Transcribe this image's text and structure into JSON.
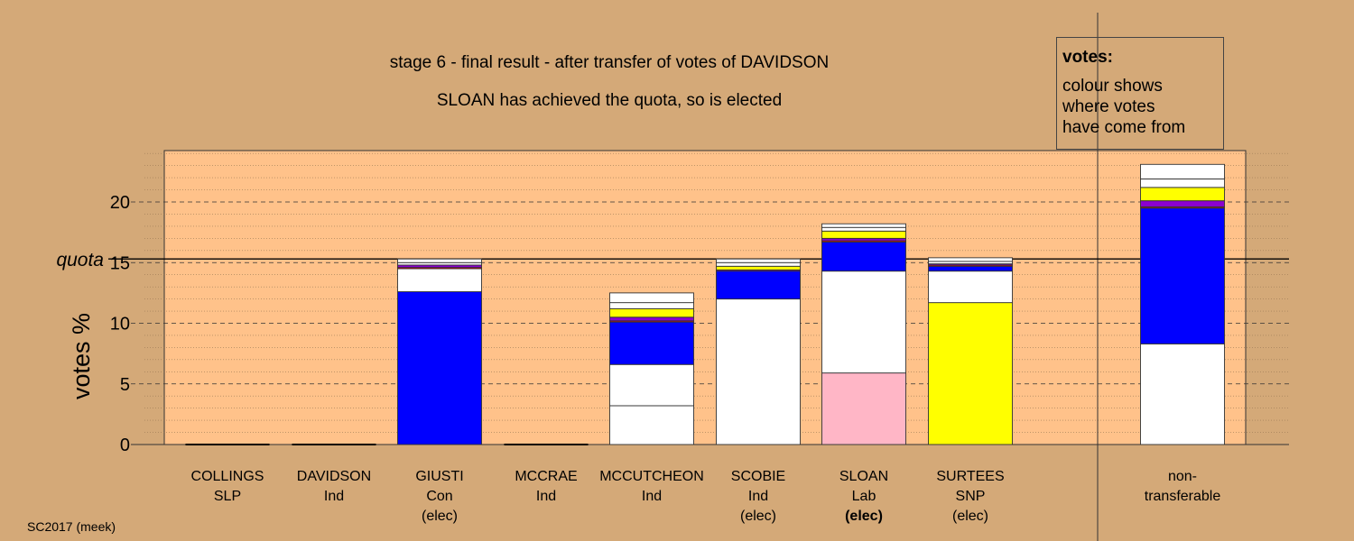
{
  "chart_data": {
    "type": "bar",
    "stacked": true,
    "title": "stage 6 - final result - after transfer of votes of DAVIDSON",
    "subtitle": "SLOAN has achieved the quota, so is elected",
    "ylabel": "votes %",
    "ylim": [
      0,
      24.5
    ],
    "yticks": [
      0,
      5,
      10,
      15,
      20
    ],
    "quota": 15.3,
    "quota_label": "quota",
    "footer": "SC2017 (meek)",
    "legend": {
      "title": "votes:",
      "lines": [
        "colour shows",
        "where votes",
        "have come from"
      ]
    },
    "colors": {
      "white": "#ffffff",
      "blue": "#0000ff",
      "yellow": "#ffff00",
      "purple": "#8b00d0",
      "red": "#ff0000",
      "pink": "#ffb6c6",
      "plot_bg": "#ffc28a",
      "page_bg": "#d4a978"
    },
    "bars": [
      {
        "name": "COLLINGS",
        "party": "SLP",
        "status": "",
        "segments": []
      },
      {
        "name": "DAVIDSON",
        "party": "Ind",
        "status": "",
        "segments": []
      },
      {
        "name": "GIUSTI",
        "party": "Con",
        "status": "(elec)",
        "segments": [
          {
            "color": "blue",
            "value": 12.6
          },
          {
            "color": "white",
            "value": 1.9
          },
          {
            "color": "red",
            "value": 0.1
          },
          {
            "color": "purple",
            "value": 0.2
          },
          {
            "color": "white",
            "value": 0.2
          },
          {
            "color": "white",
            "value": 0.3
          }
        ]
      },
      {
        "name": "MCCRAE",
        "party": "Ind",
        "status": "",
        "segments": []
      },
      {
        "name": "MCCUTCHEON",
        "party": "Ind",
        "status": "",
        "segments": [
          {
            "color": "white",
            "value": 3.2
          },
          {
            "color": "white",
            "value": 3.4
          },
          {
            "color": "blue",
            "value": 3.5
          },
          {
            "color": "red",
            "value": 0.1
          },
          {
            "color": "purple",
            "value": 0.3
          },
          {
            "color": "yellow",
            "value": 0.7
          },
          {
            "color": "white",
            "value": 0.5
          },
          {
            "color": "white",
            "value": 0.8
          }
        ]
      },
      {
        "name": "SCOBIE",
        "party": "Ind",
        "status": "(elec)",
        "segments": [
          {
            "color": "white",
            "value": 12.0
          },
          {
            "color": "blue",
            "value": 2.3
          },
          {
            "color": "purple",
            "value": 0.1
          },
          {
            "color": "yellow",
            "value": 0.3
          },
          {
            "color": "white",
            "value": 0.3
          },
          {
            "color": "white",
            "value": 0.3
          }
        ]
      },
      {
        "name": "SLOAN",
        "party": "Lab",
        "status": "(elec)",
        "status_bold": true,
        "segments": [
          {
            "color": "pink",
            "value": 5.9
          },
          {
            "color": "white",
            "value": 8.4
          },
          {
            "color": "blue",
            "value": 2.4
          },
          {
            "color": "red",
            "value": 0.1
          },
          {
            "color": "purple",
            "value": 0.2
          },
          {
            "color": "yellow",
            "value": 0.6
          },
          {
            "color": "white",
            "value": 0.3
          },
          {
            "color": "white",
            "value": 0.3
          }
        ]
      },
      {
        "name": "SURTEES",
        "party": "SNP",
        "status": "(elec)",
        "segments": [
          {
            "color": "yellow",
            "value": 11.7
          },
          {
            "color": "white",
            "value": 2.6
          },
          {
            "color": "blue",
            "value": 0.4
          },
          {
            "color": "red",
            "value": 0.1
          },
          {
            "color": "purple",
            "value": 0.1
          },
          {
            "color": "white",
            "value": 0.2
          },
          {
            "color": "white",
            "value": 0.3
          }
        ]
      },
      {
        "name": "non-",
        "party": "transferable",
        "status": "",
        "separate": true,
        "segments": [
          {
            "color": "white",
            "value": 8.3
          },
          {
            "color": "blue",
            "value": 11.2
          },
          {
            "color": "red",
            "value": 0.1
          },
          {
            "color": "purple",
            "value": 0.5
          },
          {
            "color": "yellow",
            "value": 1.1
          },
          {
            "color": "white",
            "value": 0.7
          },
          {
            "color": "white",
            "value": 1.2
          }
        ]
      }
    ]
  }
}
